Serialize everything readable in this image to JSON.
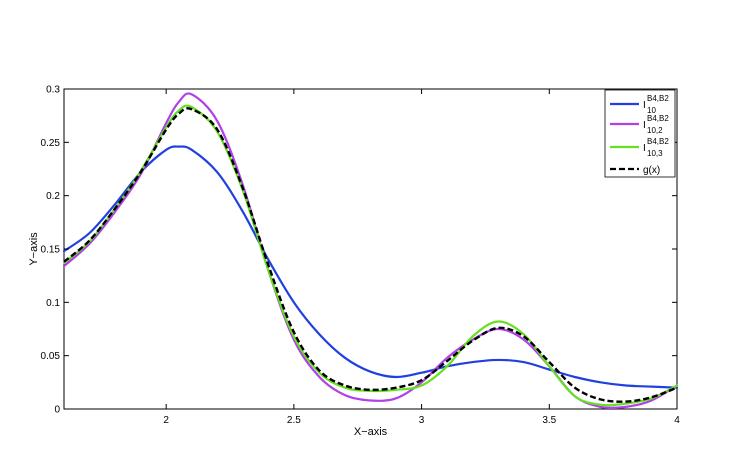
{
  "chart_data": {
    "type": "line",
    "title": "",
    "xlabel": "X−axis",
    "ylabel": "Y−axis",
    "xlim": [
      1.6,
      4.0
    ],
    "ylim": [
      0,
      0.3
    ],
    "xticks": [
      2,
      2.5,
      3,
      3.5,
      4
    ],
    "xtick_labels": [
      "2",
      "2.5",
      "3",
      "3.5",
      "4"
    ],
    "yticks": [
      0,
      0.05,
      0.1,
      0.15,
      0.2,
      0.25,
      0.3
    ],
    "ytick_labels": [
      "0",
      "0.05",
      "0.1",
      "0.15",
      "0.2",
      "0.25",
      "0.3"
    ],
    "grid": false,
    "legend_position": "top-right",
    "x": [
      1.6,
      1.7,
      1.8,
      1.9,
      2.0,
      2.05,
      2.1,
      2.2,
      2.3,
      2.4,
      2.5,
      2.6,
      2.7,
      2.8,
      2.9,
      3.0,
      3.1,
      3.2,
      3.3,
      3.4,
      3.5,
      3.6,
      3.7,
      3.8,
      3.9,
      4.0
    ],
    "series": [
      {
        "label_main": "I",
        "label_sup": "B4,B2",
        "label_sub": "10",
        "color": "#2040e0",
        "dash": "solid",
        "values": [
          0.148,
          0.165,
          0.192,
          0.222,
          0.243,
          0.246,
          0.243,
          0.222,
          0.185,
          0.14,
          0.1,
          0.07,
          0.048,
          0.035,
          0.03,
          0.034,
          0.04,
          0.044,
          0.046,
          0.044,
          0.037,
          0.03,
          0.025,
          0.022,
          0.021,
          0.02
        ]
      },
      {
        "label_main": "I",
        "label_sup": "B4,B2",
        "label_sub": "10,2",
        "color": "#b040e8",
        "dash": "solid",
        "values": [
          0.134,
          0.155,
          0.185,
          0.22,
          0.268,
          0.288,
          0.295,
          0.27,
          0.21,
          0.13,
          0.065,
          0.03,
          0.013,
          0.008,
          0.01,
          0.025,
          0.048,
          0.065,
          0.075,
          0.065,
          0.04,
          0.012,
          0.002,
          0.002,
          0.008,
          0.022
        ]
      },
      {
        "label_main": "I",
        "label_sup": "B4,B2",
        "label_sub": "10,3",
        "color": "#66e020",
        "dash": "solid",
        "values": [
          0.137,
          0.157,
          0.188,
          0.223,
          0.264,
          0.28,
          0.283,
          0.26,
          0.205,
          0.13,
          0.068,
          0.034,
          0.02,
          0.017,
          0.018,
          0.022,
          0.04,
          0.068,
          0.082,
          0.07,
          0.04,
          0.012,
          0.004,
          0.005,
          0.01,
          0.022
        ]
      },
      {
        "label_main": "g(x)",
        "label_sup": "",
        "label_sub": "",
        "color": "#000000",
        "dash": "dashed",
        "values": [
          0.138,
          0.158,
          0.188,
          0.222,
          0.262,
          0.277,
          0.281,
          0.262,
          0.207,
          0.135,
          0.072,
          0.036,
          0.022,
          0.018,
          0.02,
          0.027,
          0.045,
          0.064,
          0.076,
          0.068,
          0.044,
          0.02,
          0.009,
          0.007,
          0.011,
          0.02
        ]
      }
    ]
  }
}
